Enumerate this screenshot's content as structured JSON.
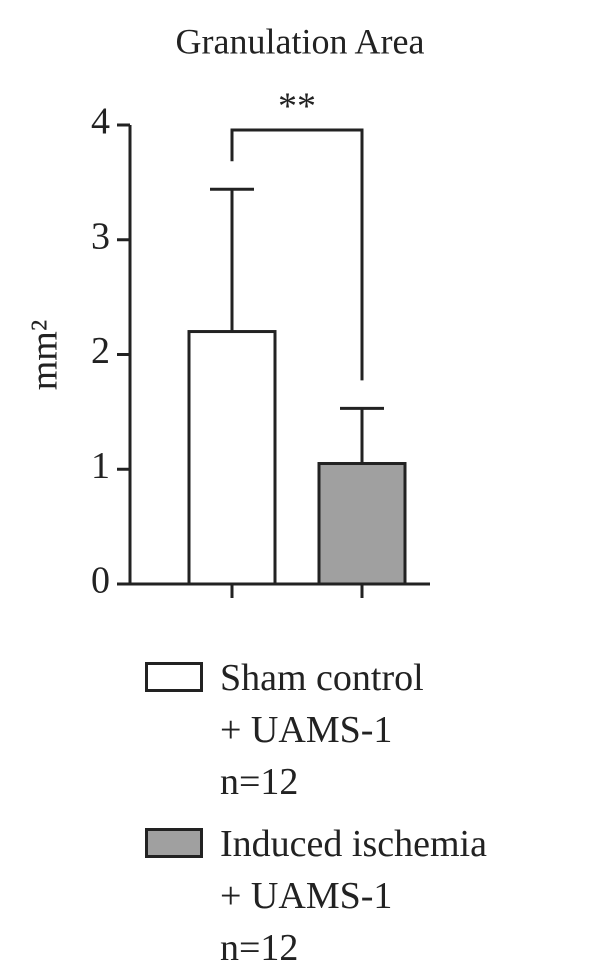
{
  "chart_data": {
    "type": "bar",
    "title": "Granulation Area",
    "ylabel": "mm²",
    "categories": [
      null,
      null
    ],
    "series": [
      {
        "name": "Sham control\n+ UAMS-1\nn=12",
        "color": "#ffffff",
        "values": [
          2.2,
          null
        ],
        "errors": [
          1.24,
          null
        ]
      },
      {
        "name": "Induced ischemia\n+ UAMS-1\nn=12",
        "color": "#a0a0a0",
        "values": [
          null,
          1.05
        ],
        "errors": [
          null,
          0.48
        ]
      }
    ],
    "significance": "**",
    "ylim": [
      0,
      4
    ],
    "yticks": [
      0,
      1,
      2,
      3,
      4
    ],
    "grid": false
  }
}
